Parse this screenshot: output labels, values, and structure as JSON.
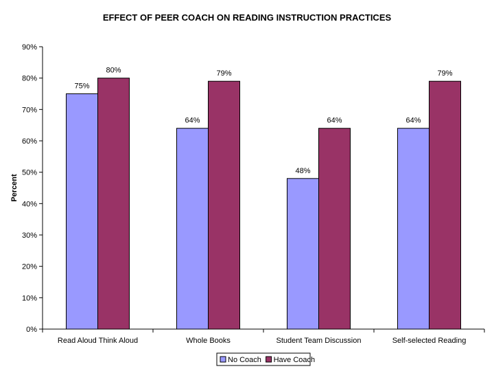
{
  "chart_data": {
    "type": "bar",
    "title": "EFFECT OF PEER COACH ON READING INSTRUCTION PRACTICES",
    "xlabel": "",
    "ylabel": "Percent",
    "categories": [
      "Read Aloud Think Aloud",
      "Whole Books",
      "Student Team Discussion",
      "Self-selected Reading"
    ],
    "series": [
      {
        "name": "No Coach",
        "color": "#9999ff",
        "values": [
          75,
          64,
          48,
          64
        ],
        "labels": [
          "75%",
          "64%",
          "48%",
          "64%"
        ]
      },
      {
        "name": "Have Coach",
        "color": "#993366",
        "values": [
          80,
          79,
          64,
          79
        ],
        "labels": [
          "80%",
          "79%",
          "64%",
          "79%"
        ]
      }
    ],
    "ylim": [
      0,
      90
    ],
    "yticks": [
      "0%",
      "10%",
      "20%",
      "30%",
      "40%",
      "50%",
      "60%",
      "70%",
      "80%",
      "90%"
    ],
    "grid": false,
    "legend_position": "bottom"
  }
}
